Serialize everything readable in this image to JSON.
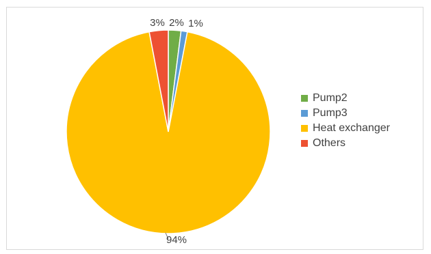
{
  "chart_data": {
    "type": "pie",
    "slices": [
      {
        "label": "Pump2",
        "value": 2,
        "display": "2%",
        "color": "#70AD47"
      },
      {
        "label": "Pump3",
        "value": 1,
        "display": "1%",
        "color": "#5B9BD5"
      },
      {
        "label": "Heat exchanger",
        "value": 94,
        "display": "94%",
        "color": "#FFC000"
      },
      {
        "label": "Others",
        "value": 3,
        "display": "3%",
        "color": "#ED5132"
      }
    ],
    "legend_position": "right"
  }
}
